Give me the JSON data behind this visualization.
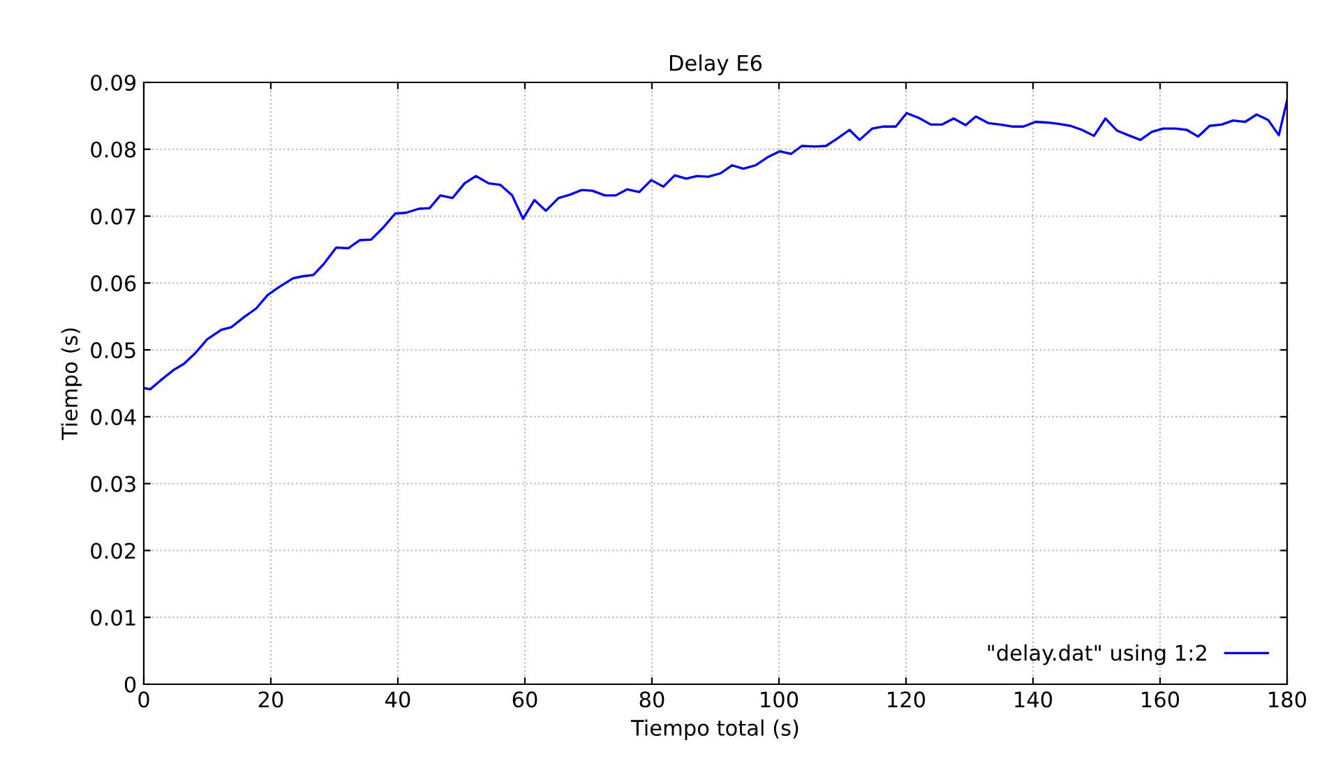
{
  "chart_data": {
    "type": "line",
    "title": "Delay E6",
    "xlabel": "Tiempo total (s)",
    "ylabel": "Tiempo (s)",
    "xlim": [
      0,
      180
    ],
    "xticks": [
      0,
      20,
      40,
      60,
      80,
      100,
      120,
      140,
      160,
      180
    ],
    "ylim": [
      0,
      0.09
    ],
    "yticks": [
      0,
      0.01,
      0.02,
      0.03,
      0.04,
      0.05,
      0.06,
      0.07,
      0.08,
      0.09
    ],
    "grid": true,
    "legend": "bottom right",
    "marker": "none",
    "line_style": "solid",
    "series": [
      {
        "name": "\"delay.dat\" using 1:2",
        "color": "#0000ff",
        "x": [
          0,
          1,
          2.6,
          4.7,
          6.3,
          8.1,
          10,
          12.2,
          13.8,
          15.8,
          17.7,
          19.5,
          21.3,
          23.5,
          25,
          26.7,
          28.3,
          30.3,
          32.2,
          34,
          35.8,
          37.6,
          39.6,
          41.3,
          43.3,
          45,
          46.7,
          48.6,
          50.5,
          52.3,
          54.3,
          56.1,
          58,
          59.7,
          61.5,
          63.3,
          65.3,
          67.1,
          68.9,
          70.6,
          72.6,
          74.3,
          76.1,
          78,
          79.9,
          81.8,
          83.6,
          85.4,
          87.1,
          88.9,
          90.8,
          92.6,
          94.4,
          96.3,
          98.2,
          100.1,
          101.9,
          103.6,
          105.6,
          107.4,
          109.2,
          111.1,
          112.7,
          114.7,
          116.5,
          118.4,
          120.1,
          122,
          123.9,
          125.7,
          127.5,
          129.4,
          131,
          133,
          134.8,
          136.7,
          138.5,
          140.4,
          142.2,
          144,
          145.9,
          147.7,
          149.6,
          151.4,
          153.2,
          155,
          156.9,
          158.7,
          160.5,
          162.4,
          164.2,
          166,
          167.8,
          169.7,
          171.5,
          173.4,
          175.2,
          177,
          178.7,
          180
        ],
        "values": [
          0.0443,
          0.0441,
          0.0454,
          0.047,
          0.0479,
          0.0495,
          0.0516,
          0.053,
          0.0534,
          0.0549,
          0.0562,
          0.0582,
          0.0594,
          0.0607,
          0.061,
          0.0612,
          0.0628,
          0.0653,
          0.0652,
          0.0664,
          0.0665,
          0.0682,
          0.0704,
          0.0705,
          0.0711,
          0.0712,
          0.0731,
          0.0727,
          0.0749,
          0.076,
          0.0749,
          0.0747,
          0.0731,
          0.0696,
          0.0724,
          0.0708,
          0.0727,
          0.0732,
          0.0739,
          0.0738,
          0.0731,
          0.0731,
          0.074,
          0.0736,
          0.0754,
          0.0744,
          0.0761,
          0.0756,
          0.076,
          0.0759,
          0.0764,
          0.0776,
          0.0771,
          0.0776,
          0.0788,
          0.0797,
          0.0793,
          0.0805,
          0.0804,
          0.0805,
          0.0816,
          0.0829,
          0.0814,
          0.0831,
          0.0834,
          0.0834,
          0.0854,
          0.0847,
          0.0837,
          0.0837,
          0.0846,
          0.0836,
          0.0849,
          0.0839,
          0.0837,
          0.0834,
          0.0834,
          0.0841,
          0.084,
          0.0838,
          0.0835,
          0.0829,
          0.082,
          0.0846,
          0.0828,
          0.0821,
          0.0814,
          0.0826,
          0.0831,
          0.0831,
          0.0829,
          0.0819,
          0.0835,
          0.0837,
          0.0843,
          0.0841,
          0.0852,
          0.0844,
          0.0821,
          0.0873
        ]
      }
    ]
  }
}
